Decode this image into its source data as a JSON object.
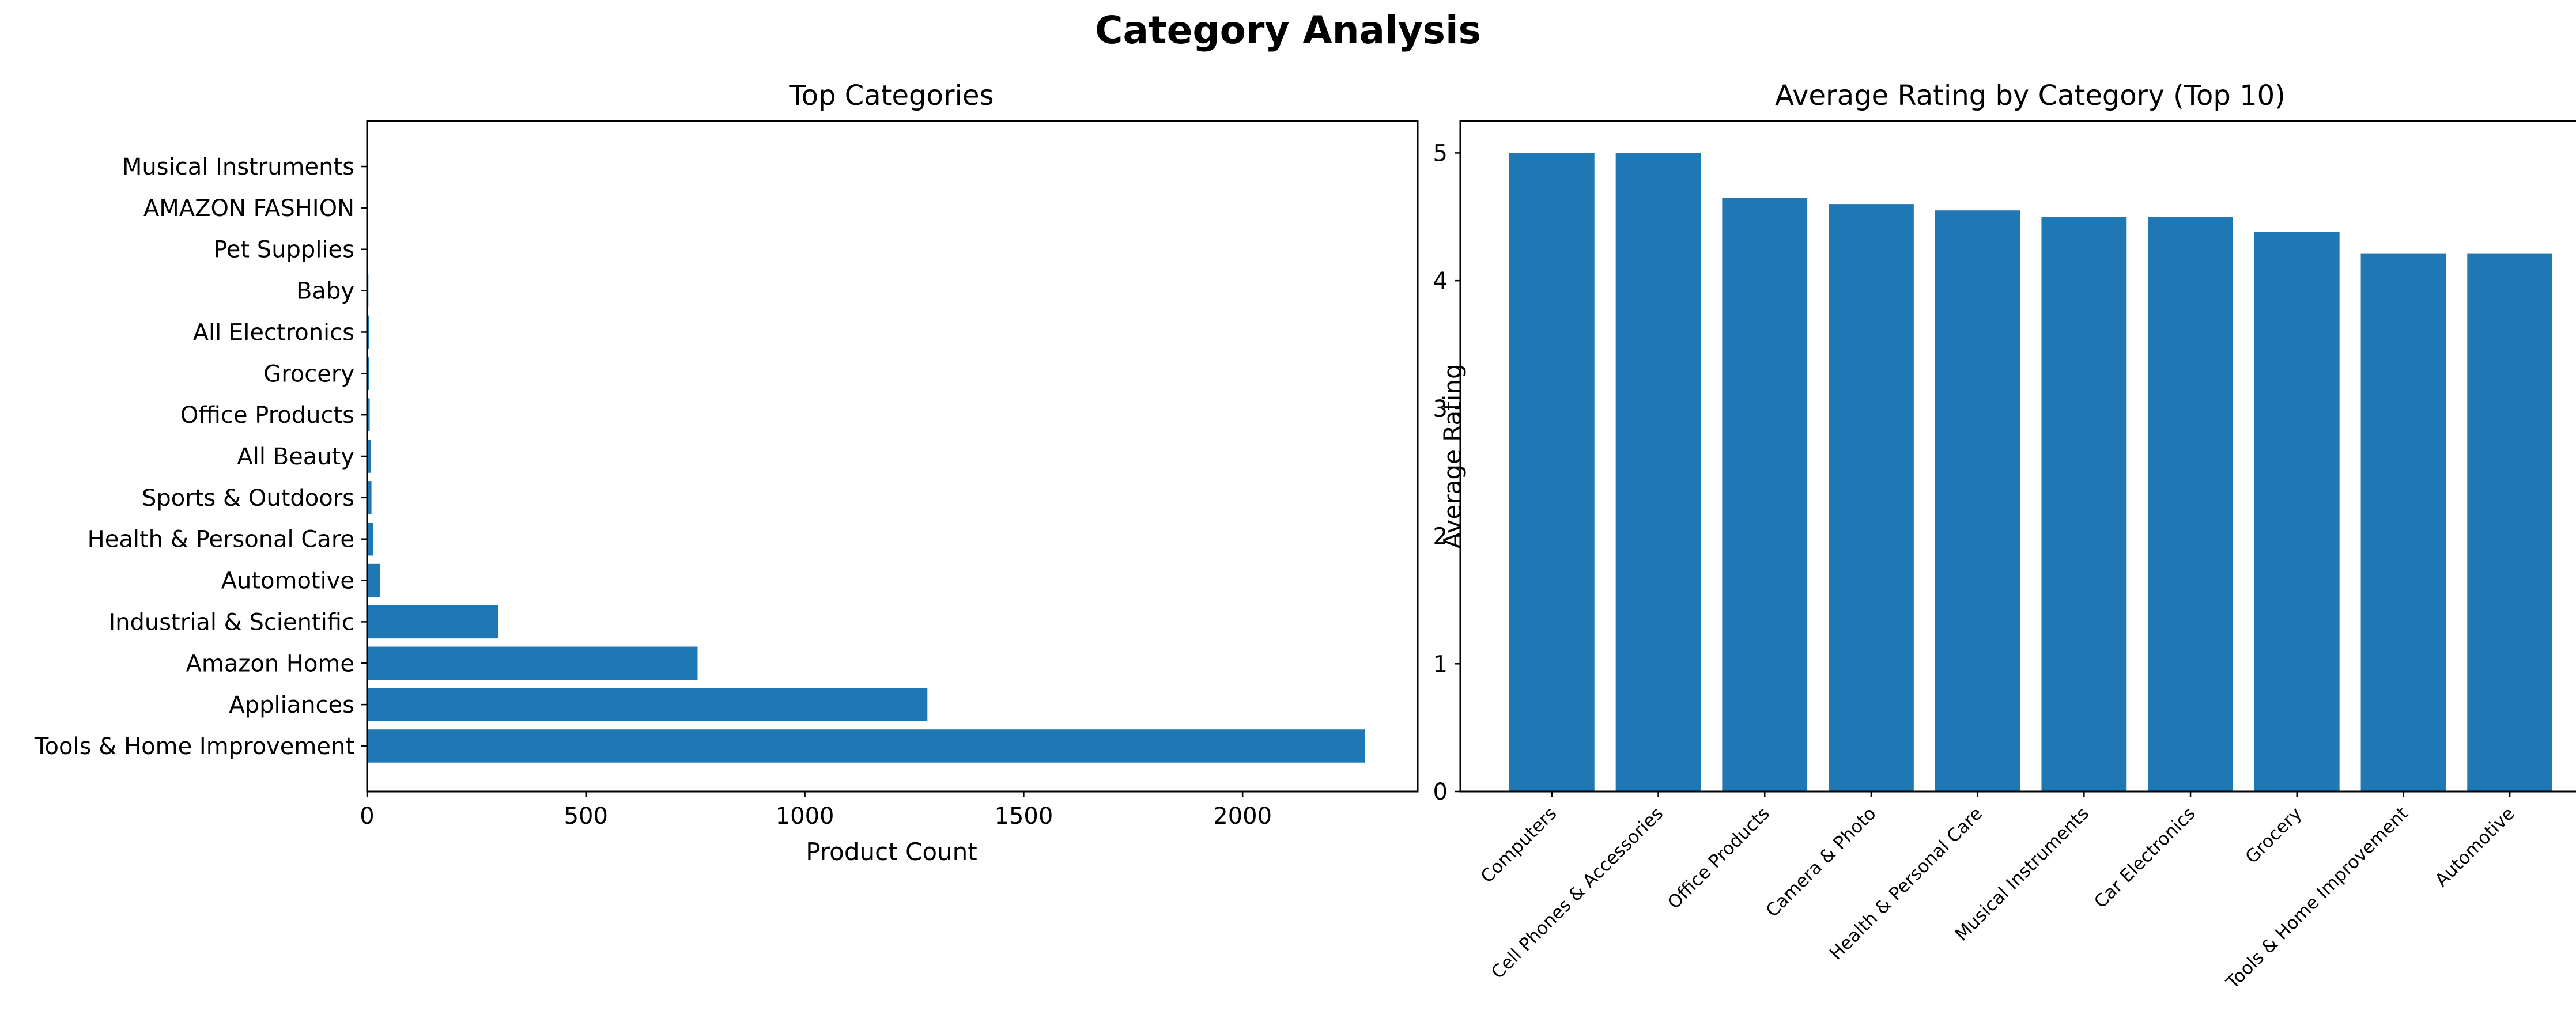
{
  "figure": {
    "suptitle": "Category Analysis"
  },
  "chart_data": [
    {
      "type": "bar",
      "orientation": "horizontal",
      "title": "Top Categories",
      "xlabel": "Product Count",
      "ylabel": "",
      "xlim": [
        0,
        2400
      ],
      "xticks": [
        0,
        500,
        1000,
        1500,
        2000
      ],
      "grid": false,
      "color": "#1f77b4",
      "categories": [
        "Tools & Home Improvement",
        "Appliances",
        "Amazon Home",
        "Industrial & Scientific",
        "Automotive",
        "Health & Personal Care",
        "Sports & Outdoors",
        "All Beauty",
        "Office Products",
        "Grocery",
        "All Electronics",
        "Baby",
        "Pet Supplies",
        "AMAZON FASHION",
        "Musical Instruments"
      ],
      "values": [
        2280,
        1280,
        755,
        300,
        30,
        14,
        10,
        8,
        6,
        5,
        4,
        3,
        2,
        1,
        1
      ]
    },
    {
      "type": "bar",
      "orientation": "vertical",
      "title": "Average Rating by Category (Top 10)",
      "xlabel": "",
      "ylabel": "Average Rating",
      "ylim": [
        0,
        5.25
      ],
      "yticks": [
        0,
        1,
        2,
        3,
        4,
        5
      ],
      "grid": false,
      "color": "#1f77b4",
      "categories": [
        "Computers",
        "Cell Phones & Accessories",
        "Office Products",
        "Camera & Photo",
        "Health & Personal Care",
        "Musical Instruments",
        "Car Electronics",
        "Grocery",
        "Tools & Home Improvement",
        "Automotive"
      ],
      "values": [
        5.0,
        5.0,
        4.65,
        4.6,
        4.55,
        4.5,
        4.5,
        4.38,
        4.21,
        4.21
      ]
    }
  ]
}
